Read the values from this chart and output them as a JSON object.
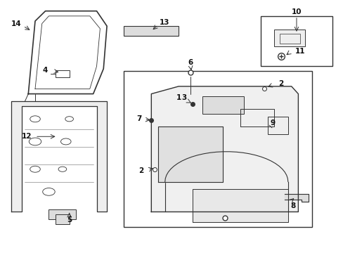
{
  "bg_color": "#ffffff",
  "fig_width": 4.89,
  "fig_height": 3.6,
  "dpi": 100,
  "gray": "#333333",
  "light": "#888888"
}
